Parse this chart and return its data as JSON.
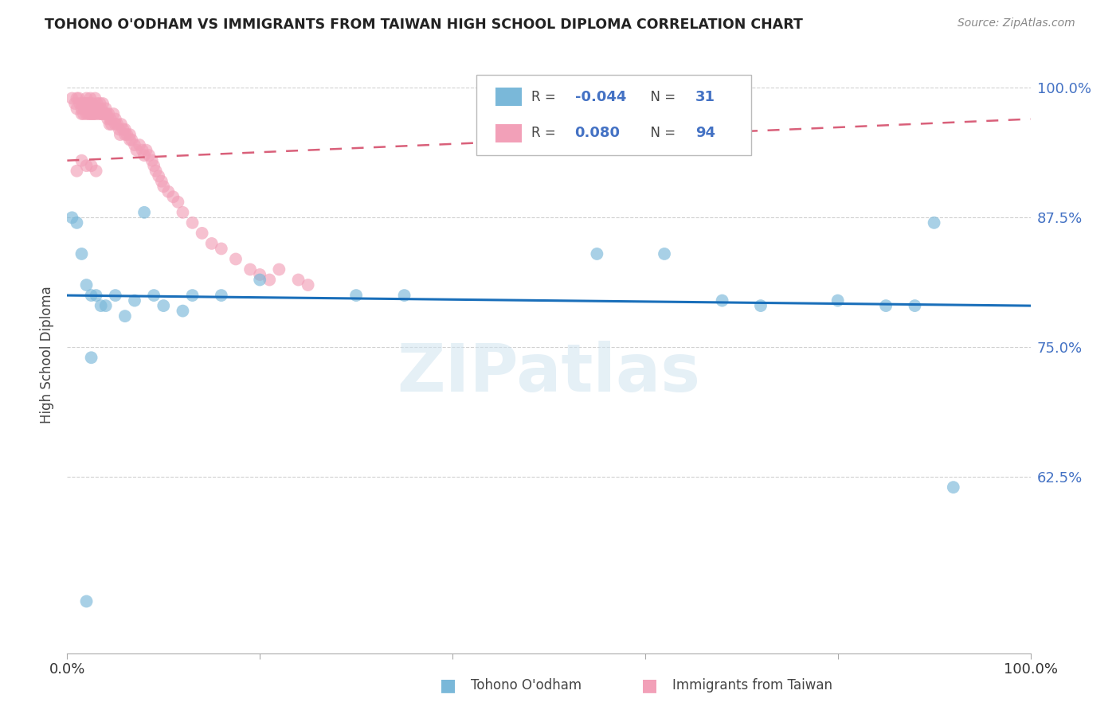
{
  "title": "TOHONO O'ODHAM VS IMMIGRANTS FROM TAIWAN HIGH SCHOOL DIPLOMA CORRELATION CHART",
  "source": "Source: ZipAtlas.com",
  "ylabel": "High School Diploma",
  "watermark": "ZIPatlas",
  "blue_label": "Tohono O'odham",
  "pink_label": "Immigrants from Taiwan",
  "blue_R": -0.044,
  "blue_N": 31,
  "pink_R": 0.08,
  "pink_N": 94,
  "xlim": [
    0.0,
    1.0
  ],
  "ylim": [
    0.455,
    1.03
  ],
  "yticks": [
    0.625,
    0.75,
    0.875,
    1.0
  ],
  "ytick_labels": [
    "62.5%",
    "75.0%",
    "87.5%",
    "100.0%"
  ],
  "xticks": [
    0.0,
    0.2,
    0.4,
    0.6,
    0.8,
    1.0
  ],
  "xtick_labels": [
    "0.0%",
    "",
    "",
    "",
    "",
    "100.0%"
  ],
  "blue_color": "#7ab8d9",
  "pink_color": "#f2a0b8",
  "blue_line_color": "#1a6fba",
  "pink_line_color": "#d9607a",
  "blue_scatter_x": [
    0.005,
    0.01,
    0.015,
    0.02,
    0.025,
    0.03,
    0.035,
    0.04,
    0.05,
    0.06,
    0.07,
    0.08,
    0.09,
    0.1,
    0.12,
    0.13,
    0.16,
    0.2,
    0.3,
    0.35,
    0.55,
    0.62,
    0.68,
    0.72,
    0.8,
    0.85,
    0.88,
    0.9,
    0.92,
    0.025,
    0.02
  ],
  "blue_scatter_y": [
    0.875,
    0.87,
    0.84,
    0.81,
    0.8,
    0.8,
    0.79,
    0.79,
    0.8,
    0.78,
    0.795,
    0.88,
    0.8,
    0.79,
    0.785,
    0.8,
    0.8,
    0.815,
    0.8,
    0.8,
    0.84,
    0.84,
    0.795,
    0.79,
    0.795,
    0.79,
    0.79,
    0.87,
    0.615,
    0.74,
    0.505
  ],
  "pink_scatter_x": [
    0.005,
    0.008,
    0.01,
    0.01,
    0.012,
    0.013,
    0.015,
    0.015,
    0.016,
    0.017,
    0.018,
    0.018,
    0.02,
    0.02,
    0.02,
    0.021,
    0.022,
    0.022,
    0.023,
    0.024,
    0.024,
    0.025,
    0.025,
    0.026,
    0.027,
    0.027,
    0.028,
    0.029,
    0.03,
    0.03,
    0.031,
    0.032,
    0.033,
    0.034,
    0.035,
    0.035,
    0.036,
    0.037,
    0.038,
    0.04,
    0.04,
    0.041,
    0.042,
    0.043,
    0.044,
    0.045,
    0.046,
    0.048,
    0.05,
    0.05,
    0.052,
    0.054,
    0.055,
    0.056,
    0.058,
    0.06,
    0.06,
    0.062,
    0.065,
    0.065,
    0.067,
    0.07,
    0.072,
    0.075,
    0.078,
    0.08,
    0.082,
    0.085,
    0.088,
    0.09,
    0.092,
    0.095,
    0.098,
    0.1,
    0.105,
    0.11,
    0.115,
    0.12,
    0.13,
    0.14,
    0.15,
    0.16,
    0.175,
    0.19,
    0.2,
    0.21,
    0.22,
    0.24,
    0.25,
    0.01,
    0.015,
    0.02,
    0.025,
    0.03
  ],
  "pink_scatter_y": [
    0.99,
    0.985,
    0.99,
    0.98,
    0.99,
    0.985,
    0.98,
    0.975,
    0.985,
    0.975,
    0.985,
    0.98,
    0.99,
    0.985,
    0.975,
    0.985,
    0.98,
    0.975,
    0.985,
    0.975,
    0.99,
    0.98,
    0.975,
    0.985,
    0.975,
    0.98,
    0.975,
    0.99,
    0.98,
    0.975,
    0.985,
    0.98,
    0.975,
    0.985,
    0.975,
    0.98,
    0.975,
    0.985,
    0.975,
    0.98,
    0.975,
    0.975,
    0.97,
    0.975,
    0.965,
    0.97,
    0.965,
    0.975,
    0.965,
    0.97,
    0.965,
    0.96,
    0.955,
    0.965,
    0.96,
    0.955,
    0.96,
    0.955,
    0.95,
    0.955,
    0.95,
    0.945,
    0.94,
    0.945,
    0.94,
    0.935,
    0.94,
    0.935,
    0.93,
    0.925,
    0.92,
    0.915,
    0.91,
    0.905,
    0.9,
    0.895,
    0.89,
    0.88,
    0.87,
    0.86,
    0.85,
    0.845,
    0.835,
    0.825,
    0.82,
    0.815,
    0.825,
    0.815,
    0.81,
    0.92,
    0.93,
    0.925,
    0.925,
    0.92
  ],
  "blue_trend_x": [
    0.0,
    1.0
  ],
  "blue_trend_y": [
    0.8,
    0.79
  ],
  "pink_trend_x": [
    0.0,
    1.0
  ],
  "pink_trend_y": [
    0.93,
    0.97
  ],
  "legend_R_text_color": "#4472c4",
  "legend_N_text_color": "#4472c4"
}
